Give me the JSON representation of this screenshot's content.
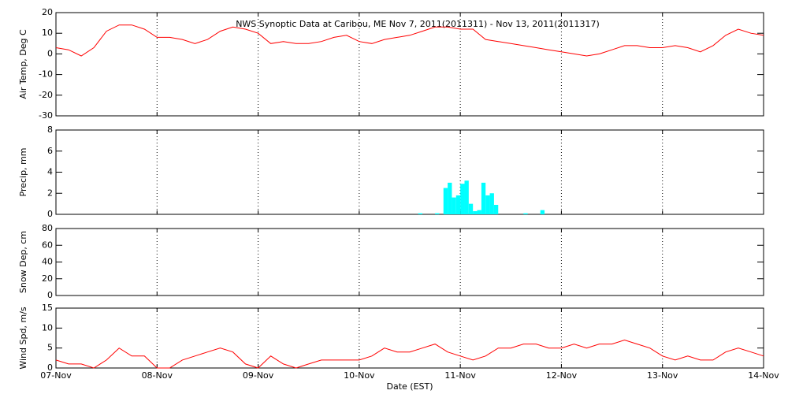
{
  "chart_data": [
    {
      "type": "line",
      "title": "NWS Synoptic Data at Caribou, ME   Nov  7, 2011(2011311) - Nov 13, 2011(2011317)",
      "ylabel": "Air Temp, Deg C",
      "color": "#ff0000",
      "grid": "x",
      "x": [
        0,
        3,
        6,
        9,
        12,
        15,
        18,
        21,
        24,
        27,
        30,
        33,
        36,
        39,
        42,
        45,
        48,
        51,
        54,
        57,
        60,
        63,
        66,
        69,
        72,
        75,
        78,
        81,
        84,
        87,
        90,
        93,
        96,
        99,
        102,
        105,
        108,
        111,
        114,
        117,
        120,
        123,
        126,
        129,
        132,
        135,
        138,
        141,
        144,
        147,
        150,
        153,
        156,
        159,
        162,
        165,
        168
      ],
      "values": [
        3,
        2,
        -1,
        3,
        11,
        14,
        14,
        12,
        8,
        8,
        7,
        5,
        7,
        11,
        13,
        12,
        10,
        5,
        6,
        5,
        5,
        6,
        8,
        9,
        6,
        5,
        7,
        8,
        9,
        11,
        13,
        13,
        12,
        12,
        7,
        6,
        5,
        4,
        3,
        2,
        1,
        0,
        -1,
        0,
        2,
        4,
        4,
        3,
        3,
        4,
        3,
        1,
        4,
        9,
        12,
        10,
        9
      ],
      "xlim": [
        0,
        168
      ],
      "xticks": [
        0,
        24,
        48,
        72,
        96,
        120,
        144,
        168
      ],
      "ylim": [
        -30,
        20
      ],
      "yticks": [
        -30,
        -20,
        -10,
        0,
        10,
        20
      ]
    },
    {
      "type": "bar",
      "ylabel": "Precip, mm",
      "color": "#00ffff",
      "grid": "x",
      "x": [
        86,
        90,
        92,
        93,
        94,
        95,
        96,
        97,
        98,
        99,
        100,
        101,
        102,
        103,
        104,
        111,
        115
      ],
      "values": [
        0.1,
        0.1,
        2.5,
        3.0,
        1.6,
        1.8,
        2.9,
        3.2,
        1.0,
        0.3,
        0.4,
        3.0,
        1.8,
        2.0,
        0.9,
        0.1,
        0.4
      ],
      "xlim": [
        0,
        168
      ],
      "xticks": [
        0,
        24,
        48,
        72,
        96,
        120,
        144,
        168
      ],
      "ylim": [
        0,
        8
      ],
      "yticks": [
        0,
        2,
        4,
        6,
        8
      ]
    },
    {
      "type": "line",
      "ylabel": "Snow Dep, cm",
      "grid": "x",
      "xlim": [
        0,
        168
      ],
      "xticks": [
        0,
        24,
        48,
        72,
        96,
        120,
        144,
        168
      ],
      "ylim": [
        0,
        80
      ],
      "yticks": [
        0,
        20,
        40,
        60,
        80
      ]
    },
    {
      "type": "line",
      "ylabel": "Wind Spd, m/s",
      "xlabel": "Date (EST)",
      "color": "#ff0000",
      "grid": "x",
      "x": [
        0,
        3,
        6,
        9,
        12,
        15,
        18,
        21,
        24,
        27,
        30,
        33,
        36,
        39,
        42,
        45,
        48,
        51,
        54,
        57,
        60,
        63,
        66,
        69,
        72,
        75,
        78,
        81,
        84,
        87,
        90,
        93,
        96,
        99,
        102,
        105,
        108,
        111,
        114,
        117,
        120,
        123,
        126,
        129,
        132,
        135,
        138,
        141,
        144,
        147,
        150,
        153,
        156,
        159,
        162,
        165,
        168
      ],
      "values": [
        2,
        1,
        1,
        0,
        2,
        5,
        3,
        3,
        0,
        0,
        2,
        3,
        4,
        5,
        4,
        1,
        0,
        3,
        1,
        0,
        1,
        2,
        2,
        2,
        2,
        3,
        5,
        4,
        4,
        5,
        6,
        4,
        3,
        2,
        3,
        5,
        5,
        6,
        6,
        5,
        5,
        6,
        5,
        6,
        6,
        7,
        6,
        5,
        3,
        2,
        3,
        2,
        2,
        4,
        5,
        4,
        3
      ],
      "xlim": [
        0,
        168
      ],
      "xticks": [
        {
          "value": 0,
          "label": "07-Nov"
        },
        {
          "value": 24,
          "label": "08-Nov"
        },
        {
          "value": 48,
          "label": "09-Nov"
        },
        {
          "value": 72,
          "label": "10-Nov"
        },
        {
          "value": 96,
          "label": "11-Nov"
        },
        {
          "value": 120,
          "label": "12-Nov"
        },
        {
          "value": 144,
          "label": "13-Nov"
        },
        {
          "value": 168,
          "label": "14-Nov"
        }
      ],
      "ylim": [
        0,
        15
      ],
      "yticks": [
        0,
        5,
        10,
        15
      ]
    }
  ]
}
